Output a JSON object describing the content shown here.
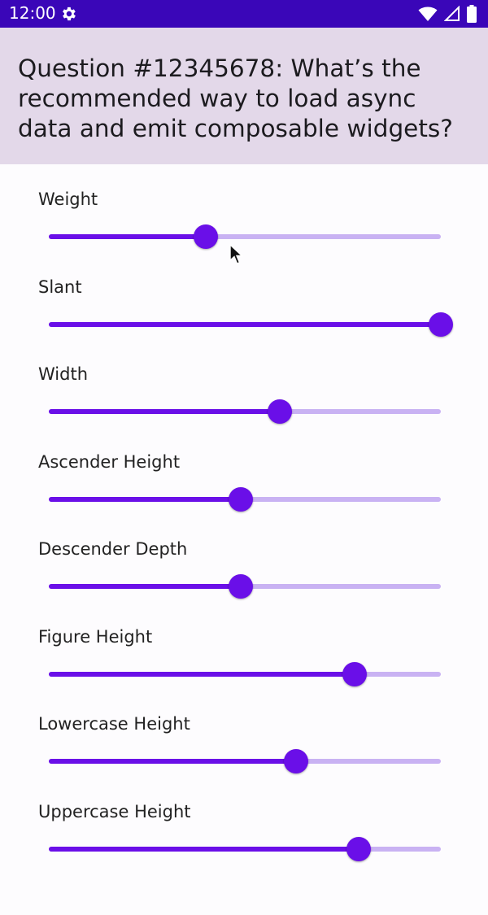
{
  "status_bar": {
    "time": "12:00",
    "icons": [
      "gear-icon",
      "wifi-icon",
      "signal-icon",
      "battery-icon"
    ]
  },
  "header": {
    "title": "Question #12345678: What’s the recommended way to load async data and emit composable widgets?"
  },
  "colors": {
    "status_bar": "#3a06b8",
    "header_bg": "#e3d8e9",
    "accent": "#6a0fe8",
    "track_inactive": "#c9b2f3"
  },
  "sliders": [
    {
      "label": "Weight",
      "value": 0.4
    },
    {
      "label": "Slant",
      "value": 1.0
    },
    {
      "label": "Width",
      "value": 0.59
    },
    {
      "label": "Ascender Height",
      "value": 0.49
    },
    {
      "label": "Descender Depth",
      "value": 0.49
    },
    {
      "label": "Figure Height",
      "value": 0.78
    },
    {
      "label": "Lowercase Height",
      "value": 0.63
    },
    {
      "label": "Uppercase Height",
      "value": 0.79
    }
  ]
}
